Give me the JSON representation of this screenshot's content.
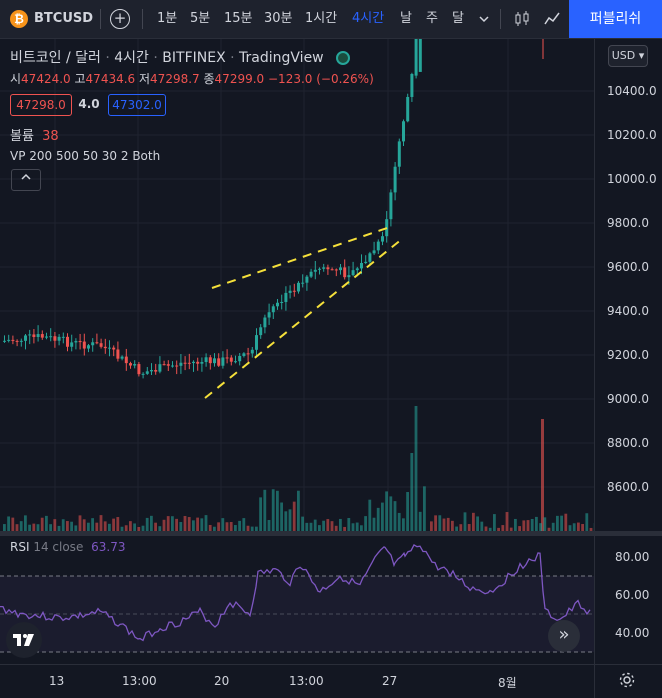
{
  "toolbar": {
    "symbol": "BTCUSD",
    "symbol_icon": "₿",
    "add_icon": "+",
    "intervals": [
      "1분",
      "5분",
      "15분",
      "30분",
      "1시간",
      "4시간",
      "날",
      "주",
      "달"
    ],
    "active_interval": "4시간",
    "publish_label": "퍼블리쉬"
  },
  "legend": {
    "title_parts": [
      "비트코인 / 달러",
      "4시간",
      "BITFINEX",
      "TradingView"
    ],
    "ohlc": {
      "open_label": "시",
      "open": "47424.0",
      "high_label": "고",
      "high": "47434.6",
      "low_label": "저",
      "low": "47298.7",
      "close_label": "종",
      "close": "47299.0",
      "change": "−123.0 (−0.26%)"
    },
    "bid": "47298.0",
    "spread": "4.0",
    "ask": "47302.0",
    "volume_label": "볼륨",
    "volume_value": "38",
    "vp_label": "VP 200 500 50 30 2 Both"
  },
  "price_axis": {
    "currency": "USD",
    "labels": [
      "10400.0",
      "10200.0",
      "10000.0",
      "9800.0",
      "9600.0",
      "9400.0",
      "9200.0",
      "9000.0",
      "8800.0",
      "8600.0"
    ]
  },
  "rsi": {
    "label": "RSI",
    "params": "14 close",
    "value": "63.73",
    "axis_labels": [
      "80.00",
      "60.00",
      "40.00"
    ]
  },
  "time_axis": {
    "labels": [
      "13",
      "13:00",
      "20",
      "13:00",
      "27",
      "8월"
    ]
  },
  "colors": {
    "up": "#26a69a",
    "down": "#ef5350",
    "trendline": "#f5e03a",
    "rsi_line": "#7e57c2",
    "accent": "#2962ff"
  }
}
